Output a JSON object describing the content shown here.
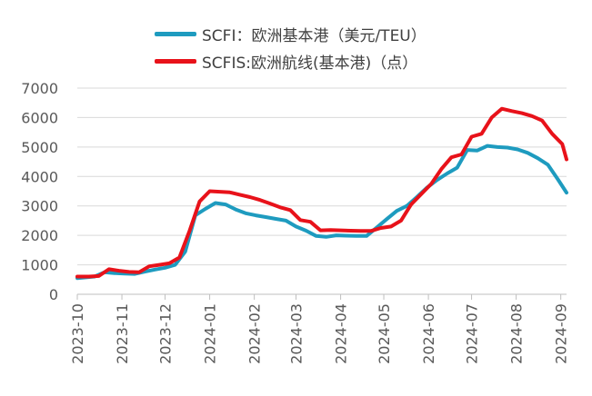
{
  "chart_data": {
    "type": "line",
    "title": "",
    "xlabel": "",
    "ylabel": "",
    "ylim": [
      0,
      7000
    ],
    "yticks": [
      0,
      1000,
      2000,
      3000,
      4000,
      5000,
      6000,
      7000
    ],
    "xlim": [
      "2023-10-01",
      "2024-09-05"
    ],
    "xticks": [
      "2023-10",
      "2023-11",
      "2023-12",
      "2024-01",
      "2024-02",
      "2024-03",
      "2024-04",
      "2024-05",
      "2024-06",
      "2024-07",
      "2024-08",
      "2024-09"
    ],
    "grid": "horizontal",
    "legend_position": "top",
    "series": [
      {
        "name": "SCFI：欧洲基本港（美元/TEU）",
        "color": "#1e9bbf",
        "points": [
          [
            "2023-10-01",
            550
          ],
          [
            "2023-10-13",
            600
          ],
          [
            "2023-10-20",
            750
          ],
          [
            "2023-10-27",
            720
          ],
          [
            "2023-11-03",
            700
          ],
          [
            "2023-11-10",
            690
          ],
          [
            "2023-11-17",
            770
          ],
          [
            "2023-11-24",
            840
          ],
          [
            "2023-12-01",
            900
          ],
          [
            "2023-12-08",
            1000
          ],
          [
            "2023-12-15",
            1450
          ],
          [
            "2023-12-22",
            2680
          ],
          [
            "2023-12-29",
            2900
          ],
          [
            "2024-01-05",
            3100
          ],
          [
            "2024-01-12",
            3050
          ],
          [
            "2024-01-19",
            2880
          ],
          [
            "2024-01-26",
            2750
          ],
          [
            "2024-02-02",
            2680
          ],
          [
            "2024-02-09",
            2620
          ],
          [
            "2024-02-16",
            2560
          ],
          [
            "2024-02-23",
            2500
          ],
          [
            "2024-03-01",
            2300
          ],
          [
            "2024-03-08",
            2160
          ],
          [
            "2024-03-15",
            1980
          ],
          [
            "2024-03-22",
            1950
          ],
          [
            "2024-03-29",
            2000
          ],
          [
            "2024-04-05",
            1990
          ],
          [
            "2024-04-12",
            1980
          ],
          [
            "2024-04-19",
            1980
          ],
          [
            "2024-04-26",
            2260
          ],
          [
            "2024-05-03",
            2550
          ],
          [
            "2024-05-10",
            2830
          ],
          [
            "2024-05-17",
            3000
          ],
          [
            "2024-05-24",
            3300
          ],
          [
            "2024-05-31",
            3620
          ],
          [
            "2024-06-07",
            3880
          ],
          [
            "2024-06-14",
            4100
          ],
          [
            "2024-06-21",
            4300
          ],
          [
            "2024-06-28",
            4900
          ],
          [
            "2024-07-05",
            4880
          ],
          [
            "2024-07-12",
            5040
          ],
          [
            "2024-07-19",
            5000
          ],
          [
            "2024-07-26",
            4980
          ],
          [
            "2024-08-02",
            4920
          ],
          [
            "2024-08-09",
            4800
          ],
          [
            "2024-08-16",
            4620
          ],
          [
            "2024-08-23",
            4400
          ],
          [
            "2024-08-30",
            3900
          ],
          [
            "2024-09-05",
            3450
          ]
        ]
      },
      {
        "name": "SCFIS:欧洲航线(基本港)（点）",
        "color": "#e8121a",
        "points": [
          [
            "2023-10-01",
            600
          ],
          [
            "2023-10-09",
            600
          ],
          [
            "2023-10-16",
            620
          ],
          [
            "2023-10-23",
            850
          ],
          [
            "2023-10-30",
            800
          ],
          [
            "2023-11-06",
            760
          ],
          [
            "2023-11-13",
            750
          ],
          [
            "2023-11-20",
            950
          ],
          [
            "2023-11-27",
            1000
          ],
          [
            "2023-12-04",
            1050
          ],
          [
            "2023-12-11",
            1250
          ],
          [
            "2023-12-18",
            2150
          ],
          [
            "2023-12-25",
            3150
          ],
          [
            "2024-01-01",
            3500
          ],
          [
            "2024-01-08",
            3480
          ],
          [
            "2024-01-15",
            3460
          ],
          [
            "2024-01-22",
            3380
          ],
          [
            "2024-01-29",
            3300
          ],
          [
            "2024-02-05",
            3200
          ],
          [
            "2024-02-12",
            3080
          ],
          [
            "2024-02-19",
            2950
          ],
          [
            "2024-02-26",
            2860
          ],
          [
            "2024-03-04",
            2520
          ],
          [
            "2024-03-11",
            2460
          ],
          [
            "2024-03-18",
            2170
          ],
          [
            "2024-03-25",
            2180
          ],
          [
            "2024-04-01",
            2170
          ],
          [
            "2024-04-08",
            2160
          ],
          [
            "2024-04-15",
            2150
          ],
          [
            "2024-04-22",
            2150
          ],
          [
            "2024-04-29",
            2250
          ],
          [
            "2024-05-06",
            2300
          ],
          [
            "2024-05-13",
            2500
          ],
          [
            "2024-05-20",
            3050
          ],
          [
            "2024-05-27",
            3400
          ],
          [
            "2024-06-03",
            3750
          ],
          [
            "2024-06-10",
            4250
          ],
          [
            "2024-06-17",
            4650
          ],
          [
            "2024-06-24",
            4750
          ],
          [
            "2024-07-01",
            5350
          ],
          [
            "2024-07-08",
            5450
          ],
          [
            "2024-07-15",
            6000
          ],
          [
            "2024-07-22",
            6300
          ],
          [
            "2024-07-29",
            6220
          ],
          [
            "2024-08-05",
            6150
          ],
          [
            "2024-08-12",
            6050
          ],
          [
            "2024-08-19",
            5900
          ],
          [
            "2024-08-26",
            5450
          ],
          [
            "2024-09-02",
            5100
          ],
          [
            "2024-09-05",
            4580
          ]
        ]
      }
    ]
  }
}
